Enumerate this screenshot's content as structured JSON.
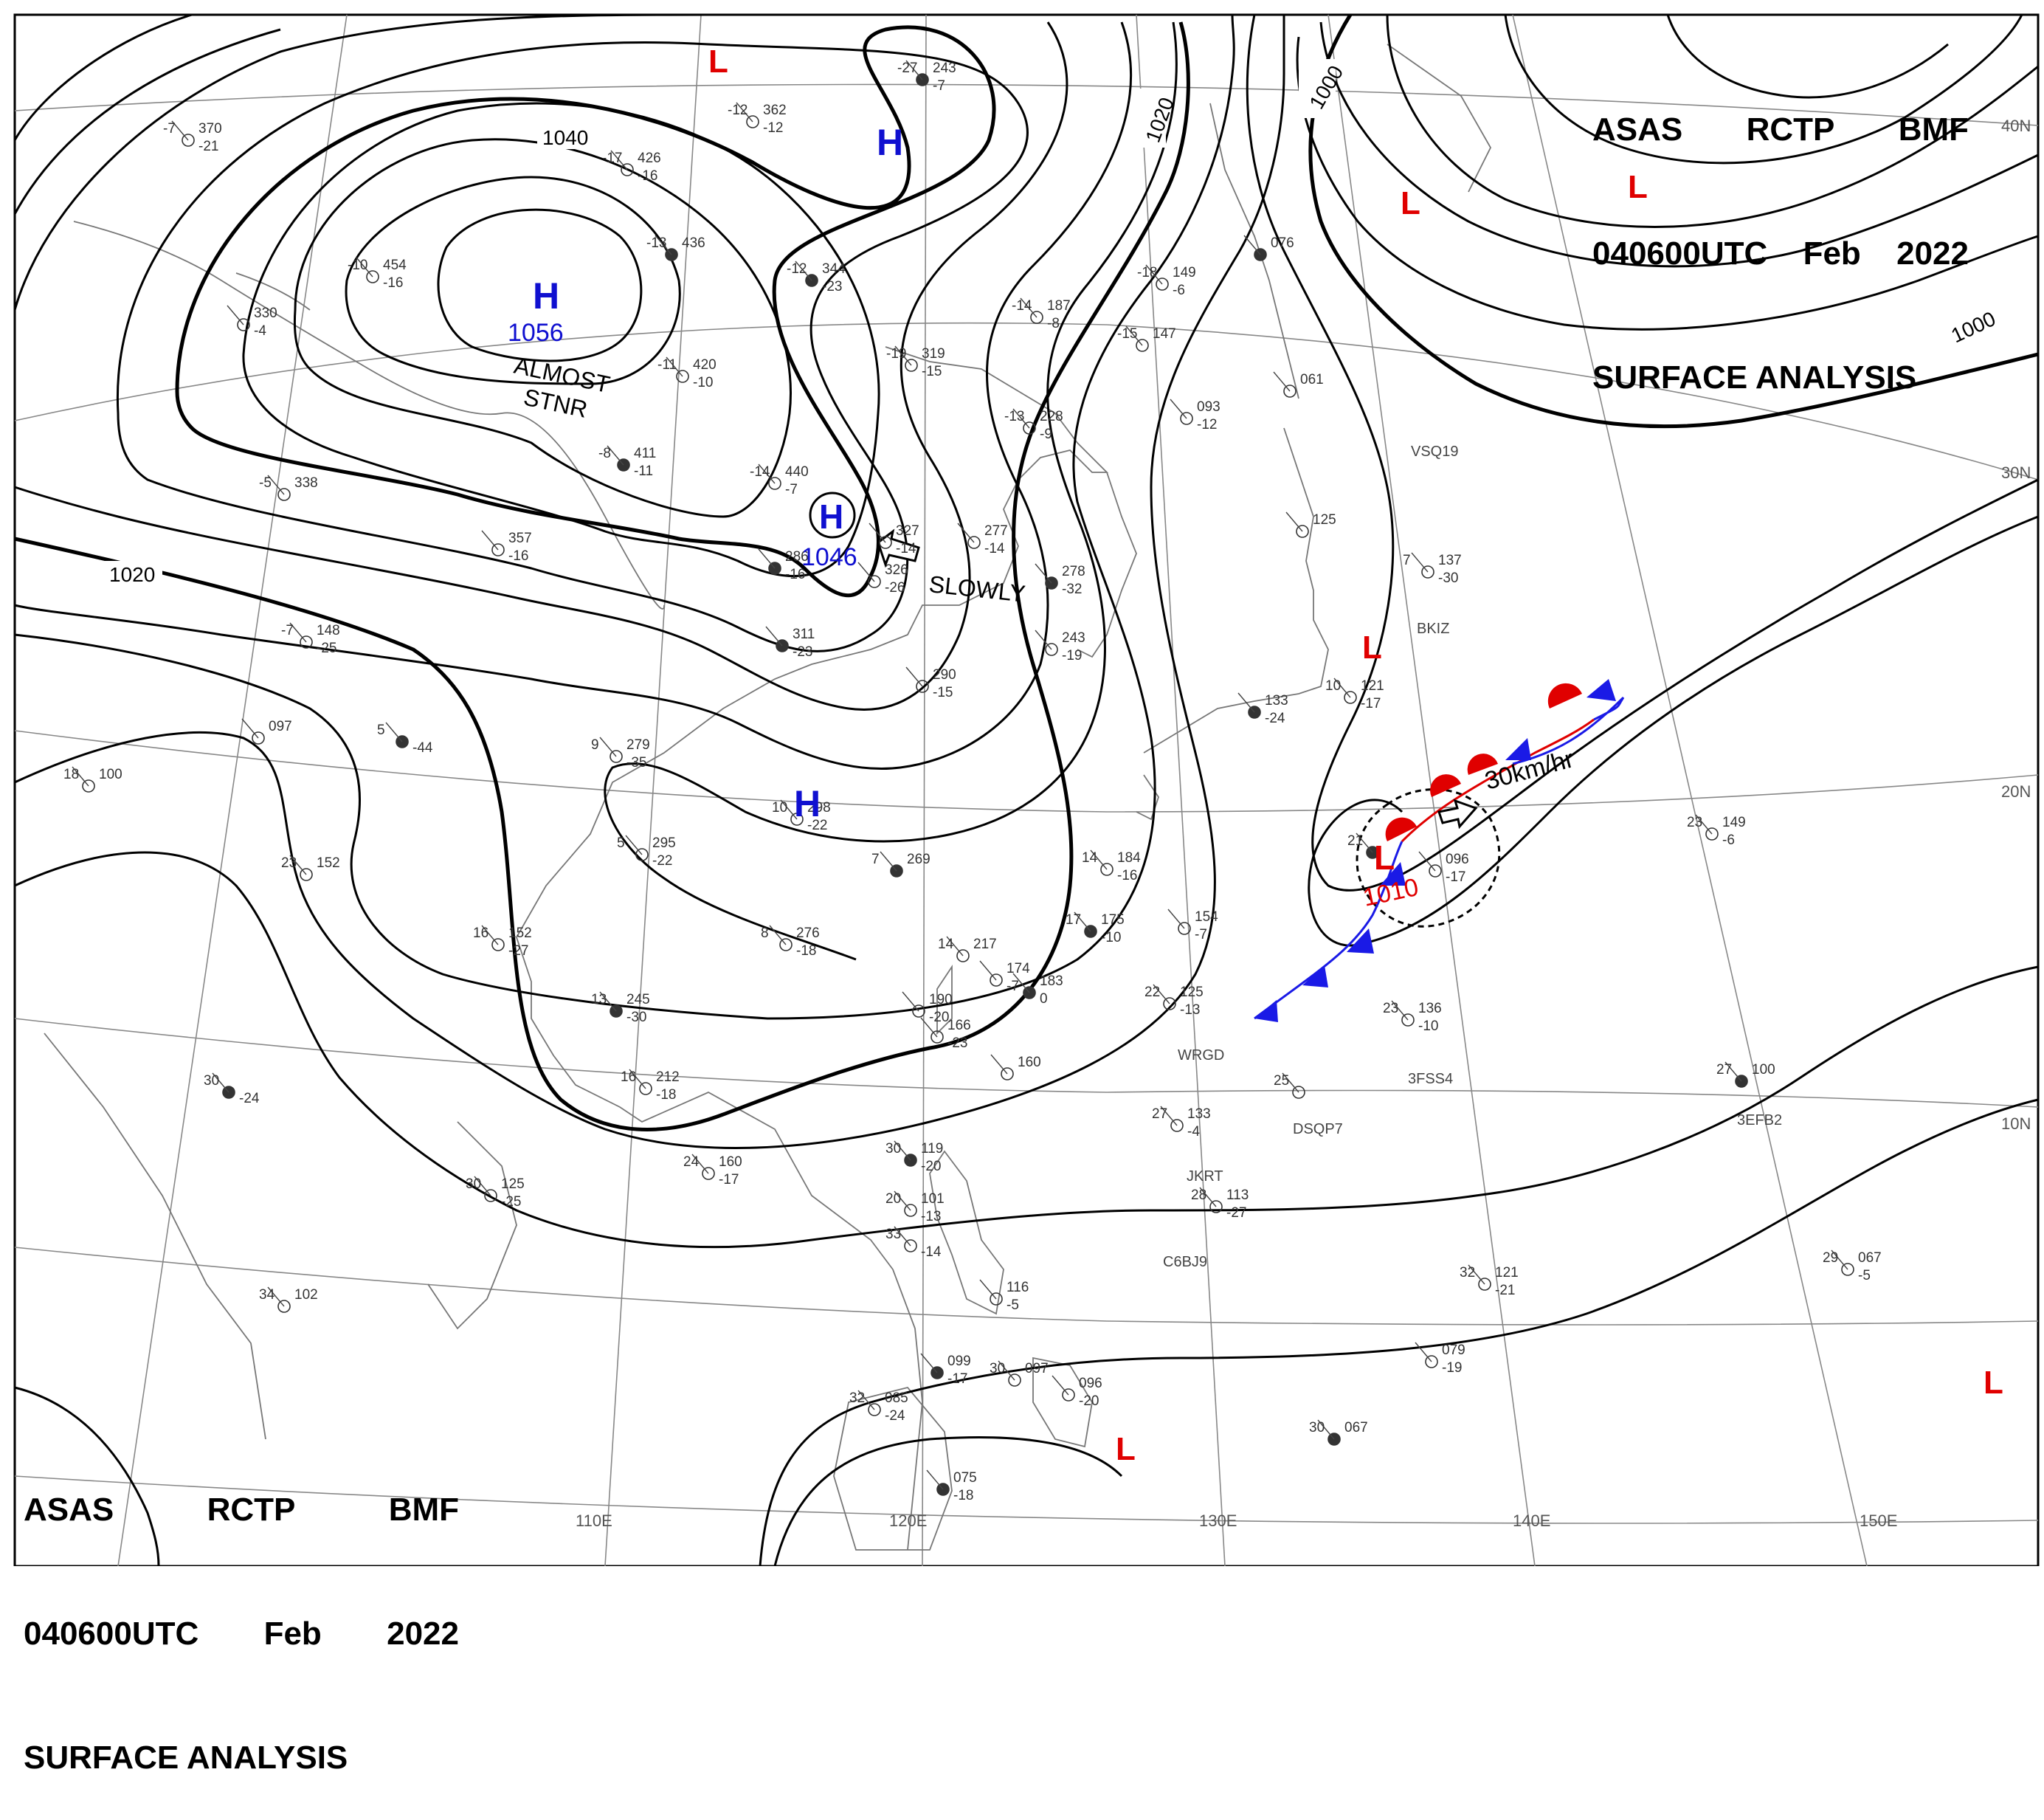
{
  "header": {
    "line1": [
      "ASAS",
      "RCTP",
      "BMF"
    ],
    "line2": [
      "040600UTC",
      "Feb",
      "2022"
    ],
    "line3": "SURFACE ANALYSIS"
  },
  "colors": {
    "isobar": "#000000",
    "high": "#1010d0",
    "low": "#e00000",
    "cold_front": "#1a1ae6",
    "warm_front": "#e00000",
    "grid": "#888888",
    "coast": "#777777"
  },
  "grid_labels": {
    "lon": [
      "110E",
      "120E",
      "130E",
      "140E",
      "150E"
    ],
    "lat": [
      "40N",
      "30N",
      "20N",
      "10N"
    ]
  },
  "isobar_labels": [
    "1040",
    "1020",
    "1020",
    "1000",
    "1000"
  ],
  "pressure_centers": [
    {
      "type": "H",
      "value": "1056",
      "note1": "ALMOST",
      "note2": "STNR"
    },
    {
      "type": "H",
      "value": "1046",
      "motion": "SLOWLY"
    },
    {
      "type": "H"
    },
    {
      "type": "H"
    },
    {
      "type": "L",
      "value": "1010",
      "motion": "30km/hr"
    },
    {
      "type": "L"
    },
    {
      "type": "L"
    },
    {
      "type": "L"
    },
    {
      "type": "L"
    },
    {
      "type": "L"
    },
    {
      "type": "L"
    }
  ],
  "stations": [
    {
      "t": "-27",
      "p": "243",
      "d": "-7"
    },
    {
      "t": "-12",
      "p": "362",
      "d": "-12"
    },
    {
      "t": "-7",
      "p": "370",
      "d": "-21"
    },
    {
      "t": "-17",
      "p": "426",
      "d": "-16"
    },
    {
      "t": "-13",
      "p": "436",
      "d": ""
    },
    {
      "t": "-10",
      "p": "454",
      "d": "-16"
    },
    {
      "t": "",
      "p": "330",
      "d": "-4"
    },
    {
      "t": "-11",
      "p": "420",
      "d": "-10"
    },
    {
      "t": "-12",
      "p": "344",
      "d": "-23"
    },
    {
      "t": "-19",
      "p": "319",
      "d": "-15"
    },
    {
      "t": "-14",
      "p": "187",
      "d": "-8"
    },
    {
      "t": "-13",
      "p": "228",
      "d": "-9"
    },
    {
      "t": "-8",
      "p": "411",
      "d": "-11"
    },
    {
      "t": "-14",
      "p": "440",
      "d": "-7"
    },
    {
      "t": "-5",
      "p": "338",
      "d": ""
    },
    {
      "t": "",
      "p": "357",
      "d": "-16"
    },
    {
      "t": "",
      "p": "286",
      "d": "-16"
    },
    {
      "t": "",
      "p": "327",
      "d": "-14"
    },
    {
      "t": "",
      "p": "326",
      "d": "-26"
    },
    {
      "t": "",
      "p": "277",
      "d": "-14"
    },
    {
      "t": "",
      "p": "311",
      "d": "-23"
    },
    {
      "t": "-7",
      "p": "148",
      "d": "-25"
    },
    {
      "t": "",
      "p": "097",
      "d": ""
    },
    {
      "t": "18",
      "p": "100",
      "d": ""
    },
    {
      "t": "5",
      "p": "",
      "d": "-44"
    },
    {
      "t": "9",
      "p": "279",
      "d": "-35"
    },
    {
      "t": "",
      "p": "290",
      "d": "-15"
    },
    {
      "t": "",
      "p": "243",
      "d": "-19"
    },
    {
      "t": "",
      "p": "278",
      "d": "-32"
    },
    {
      "t": "-18",
      "p": "149",
      "d": "-6"
    },
    {
      "t": "-15",
      "p": "147",
      "d": ""
    },
    {
      "t": "",
      "p": "093",
      "d": "-12"
    },
    {
      "t": "",
      "p": "076",
      "d": ""
    },
    {
      "t": "",
      "p": "061",
      "d": ""
    },
    {
      "t": "",
      "p": "125",
      "d": ""
    },
    {
      "t": "7",
      "p": "137",
      "d": "-30"
    },
    {
      "t": "",
      "p": "133",
      "d": "-24"
    },
    {
      "t": "10",
      "p": "121",
      "d": "-17"
    },
    {
      "t": "10",
      "p": "298",
      "d": "-22"
    },
    {
      "t": "5",
      "p": "295",
      "d": "-22"
    },
    {
      "t": "7",
      "p": "269",
      "d": ""
    },
    {
      "t": "23",
      "p": "152",
      "d": ""
    },
    {
      "t": "16",
      "p": "152",
      "d": "-27"
    },
    {
      "t": "8",
      "p": "276",
      "d": "-18"
    },
    {
      "t": "13",
      "p": "245",
      "d": "-30"
    },
    {
      "t": "14",
      "p": "217",
      "d": ""
    },
    {
      "t": "",
      "p": "174",
      "d": "-7"
    },
    {
      "t": "14",
      "p": "184",
      "d": "-16"
    },
    {
      "t": "17",
      "p": "175",
      "d": "-10"
    },
    {
      "t": "",
      "p": "154",
      "d": "-7"
    },
    {
      "t": "22",
      "p": "125",
      "d": "-13"
    },
    {
      "t": "",
      "p": "190",
      "d": "-20"
    },
    {
      "t": "",
      "p": "183",
      "d": "0"
    },
    {
      "t": "",
      "p": "166",
      "d": "-23"
    },
    {
      "t": "",
      "p": "160",
      "d": ""
    },
    {
      "t": "16",
      "p": "212",
      "d": "-18"
    },
    {
      "t": "30",
      "p": "",
      "d": "-24"
    },
    {
      "t": "24",
      "p": "160",
      "d": "-17"
    },
    {
      "t": "30",
      "p": "125",
      "d": "-25"
    },
    {
      "t": "34",
      "p": "102",
      "d": ""
    },
    {
      "t": "21",
      "p": "",
      "d": ""
    },
    {
      "t": "",
      "p": "096",
      "d": "-17"
    },
    {
      "t": "23",
      "p": "149",
      "d": "-6"
    },
    {
      "t": "23",
      "p": "136",
      "d": "-10"
    },
    {
      "t": "27",
      "p": "100",
      "d": ""
    },
    {
      "t": "25",
      "p": "",
      "d": ""
    },
    {
      "t": "27",
      "p": "133",
      "d": "-4"
    },
    {
      "t": "28",
      "p": "113",
      "d": "-27"
    },
    {
      "t": "30",
      "p": "119",
      "d": "-20"
    },
    {
      "t": "20",
      "p": "101",
      "d": "-13"
    },
    {
      "t": "33",
      "p": "",
      "d": "-14"
    },
    {
      "t": "",
      "p": "116",
      "d": "-5"
    },
    {
      "t": "",
      "p": "099",
      "d": "-17"
    },
    {
      "t": "30",
      "p": "097",
      "d": ""
    },
    {
      "t": "",
      "p": "096",
      "d": "-20"
    },
    {
      "t": "32",
      "p": "085",
      "d": "-24"
    },
    {
      "t": "",
      "p": "075",
      "d": "-18"
    },
    {
      "t": "32",
      "p": "121",
      "d": "-21"
    },
    {
      "t": "",
      "p": "079",
      "d": "-19"
    },
    {
      "t": "29",
      "p": "067",
      "d": "-5"
    },
    {
      "t": "30",
      "p": "067",
      "d": ""
    }
  ],
  "ship_ids": [
    "VSQ19",
    "BKIZ",
    "WRGD",
    "3FSS4",
    "DSQP7",
    "3EFB2",
    "C6BJ9",
    "JKRT"
  ]
}
